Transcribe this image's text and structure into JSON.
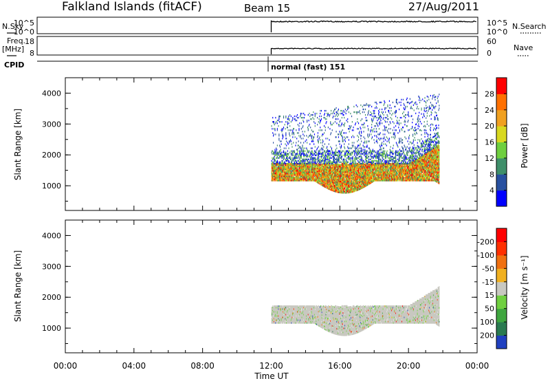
{
  "header": {
    "station": "Falkland Islands (fitACF)",
    "beam": "Beam 15",
    "date": "27/Aug/2011"
  },
  "top_panels": {
    "nsky": {
      "left_label": "N.Sky",
      "left_ticks": [
        "10^5",
        "10^0"
      ],
      "right_ticks": [
        "10^5",
        "10^0"
      ],
      "right_label": "N.Search"
    },
    "freq": {
      "left_label_1": "Freq.",
      "left_label_2": "[MHz]",
      "left_ticks": [
        "18",
        "8"
      ],
      "right_ticks": [
        "60",
        "0"
      ],
      "right_label": "Nave"
    },
    "cpid": {
      "label": "CPID",
      "annotation": "normal (fast) 151"
    }
  },
  "chart_data": [
    {
      "type": "heatmap",
      "panel": "power",
      "xlabel": "",
      "ylabel": "Slant Range [km]",
      "y_ticks": [
        "1000",
        "2000",
        "3000",
        "4000"
      ],
      "ylim": [
        200,
        4500
      ],
      "xlim": [
        0,
        24
      ],
      "colorbar": {
        "label": "Power [dB]",
        "tick_labels": [
          "4",
          "8",
          "12",
          "16",
          "20",
          "24",
          "28"
        ],
        "colors": [
          "#0000ff",
          "#2850a0",
          "#3f8f6a",
          "#6fcf3f",
          "#d8d820",
          "#f0a020",
          "#ff7000",
          "#ff0000"
        ]
      },
      "echo_regions": [
        {
          "t_start": 12.0,
          "t_end": 21.8,
          "range_low": 1000,
          "range_high": 1700,
          "level": "strong"
        },
        {
          "t_start": 12.0,
          "t_end": 21.8,
          "range_low": 1700,
          "range_high": 2200,
          "level": "medium"
        },
        {
          "t_start": 12.0,
          "t_end": 21.8,
          "range_low": 2200,
          "range_high": 3200,
          "level": "weak"
        }
      ]
    },
    {
      "type": "heatmap",
      "panel": "velocity",
      "xlabel": "Time UT",
      "ylabel": "Slant Range [km]",
      "x_ticks": [
        "00:00",
        "04:00",
        "08:00",
        "12:00",
        "16:00",
        "20:00",
        "00:00"
      ],
      "y_ticks": [
        "1000",
        "2000",
        "3000",
        "4000"
      ],
      "ylim": [
        200,
        4500
      ],
      "xlim": [
        0,
        24
      ],
      "colorbar": {
        "label": "Velocity [m s⁻¹]",
        "tick_labels": [
          "200",
          "100",
          "50",
          "15",
          "-15",
          "-50",
          "-100",
          "-200"
        ],
        "colors": [
          "#2040c0",
          "#2a7a50",
          "#3fa63f",
          "#70d040",
          "#c8c8c0",
          "#f0b020",
          "#f07010",
          "#ff3000",
          "#ff0000"
        ]
      },
      "echo_regions": [
        {
          "t_start": 12.0,
          "t_end": 21.8,
          "range_low": 1000,
          "range_high": 2000,
          "level": "near-zero"
        }
      ]
    }
  ]
}
